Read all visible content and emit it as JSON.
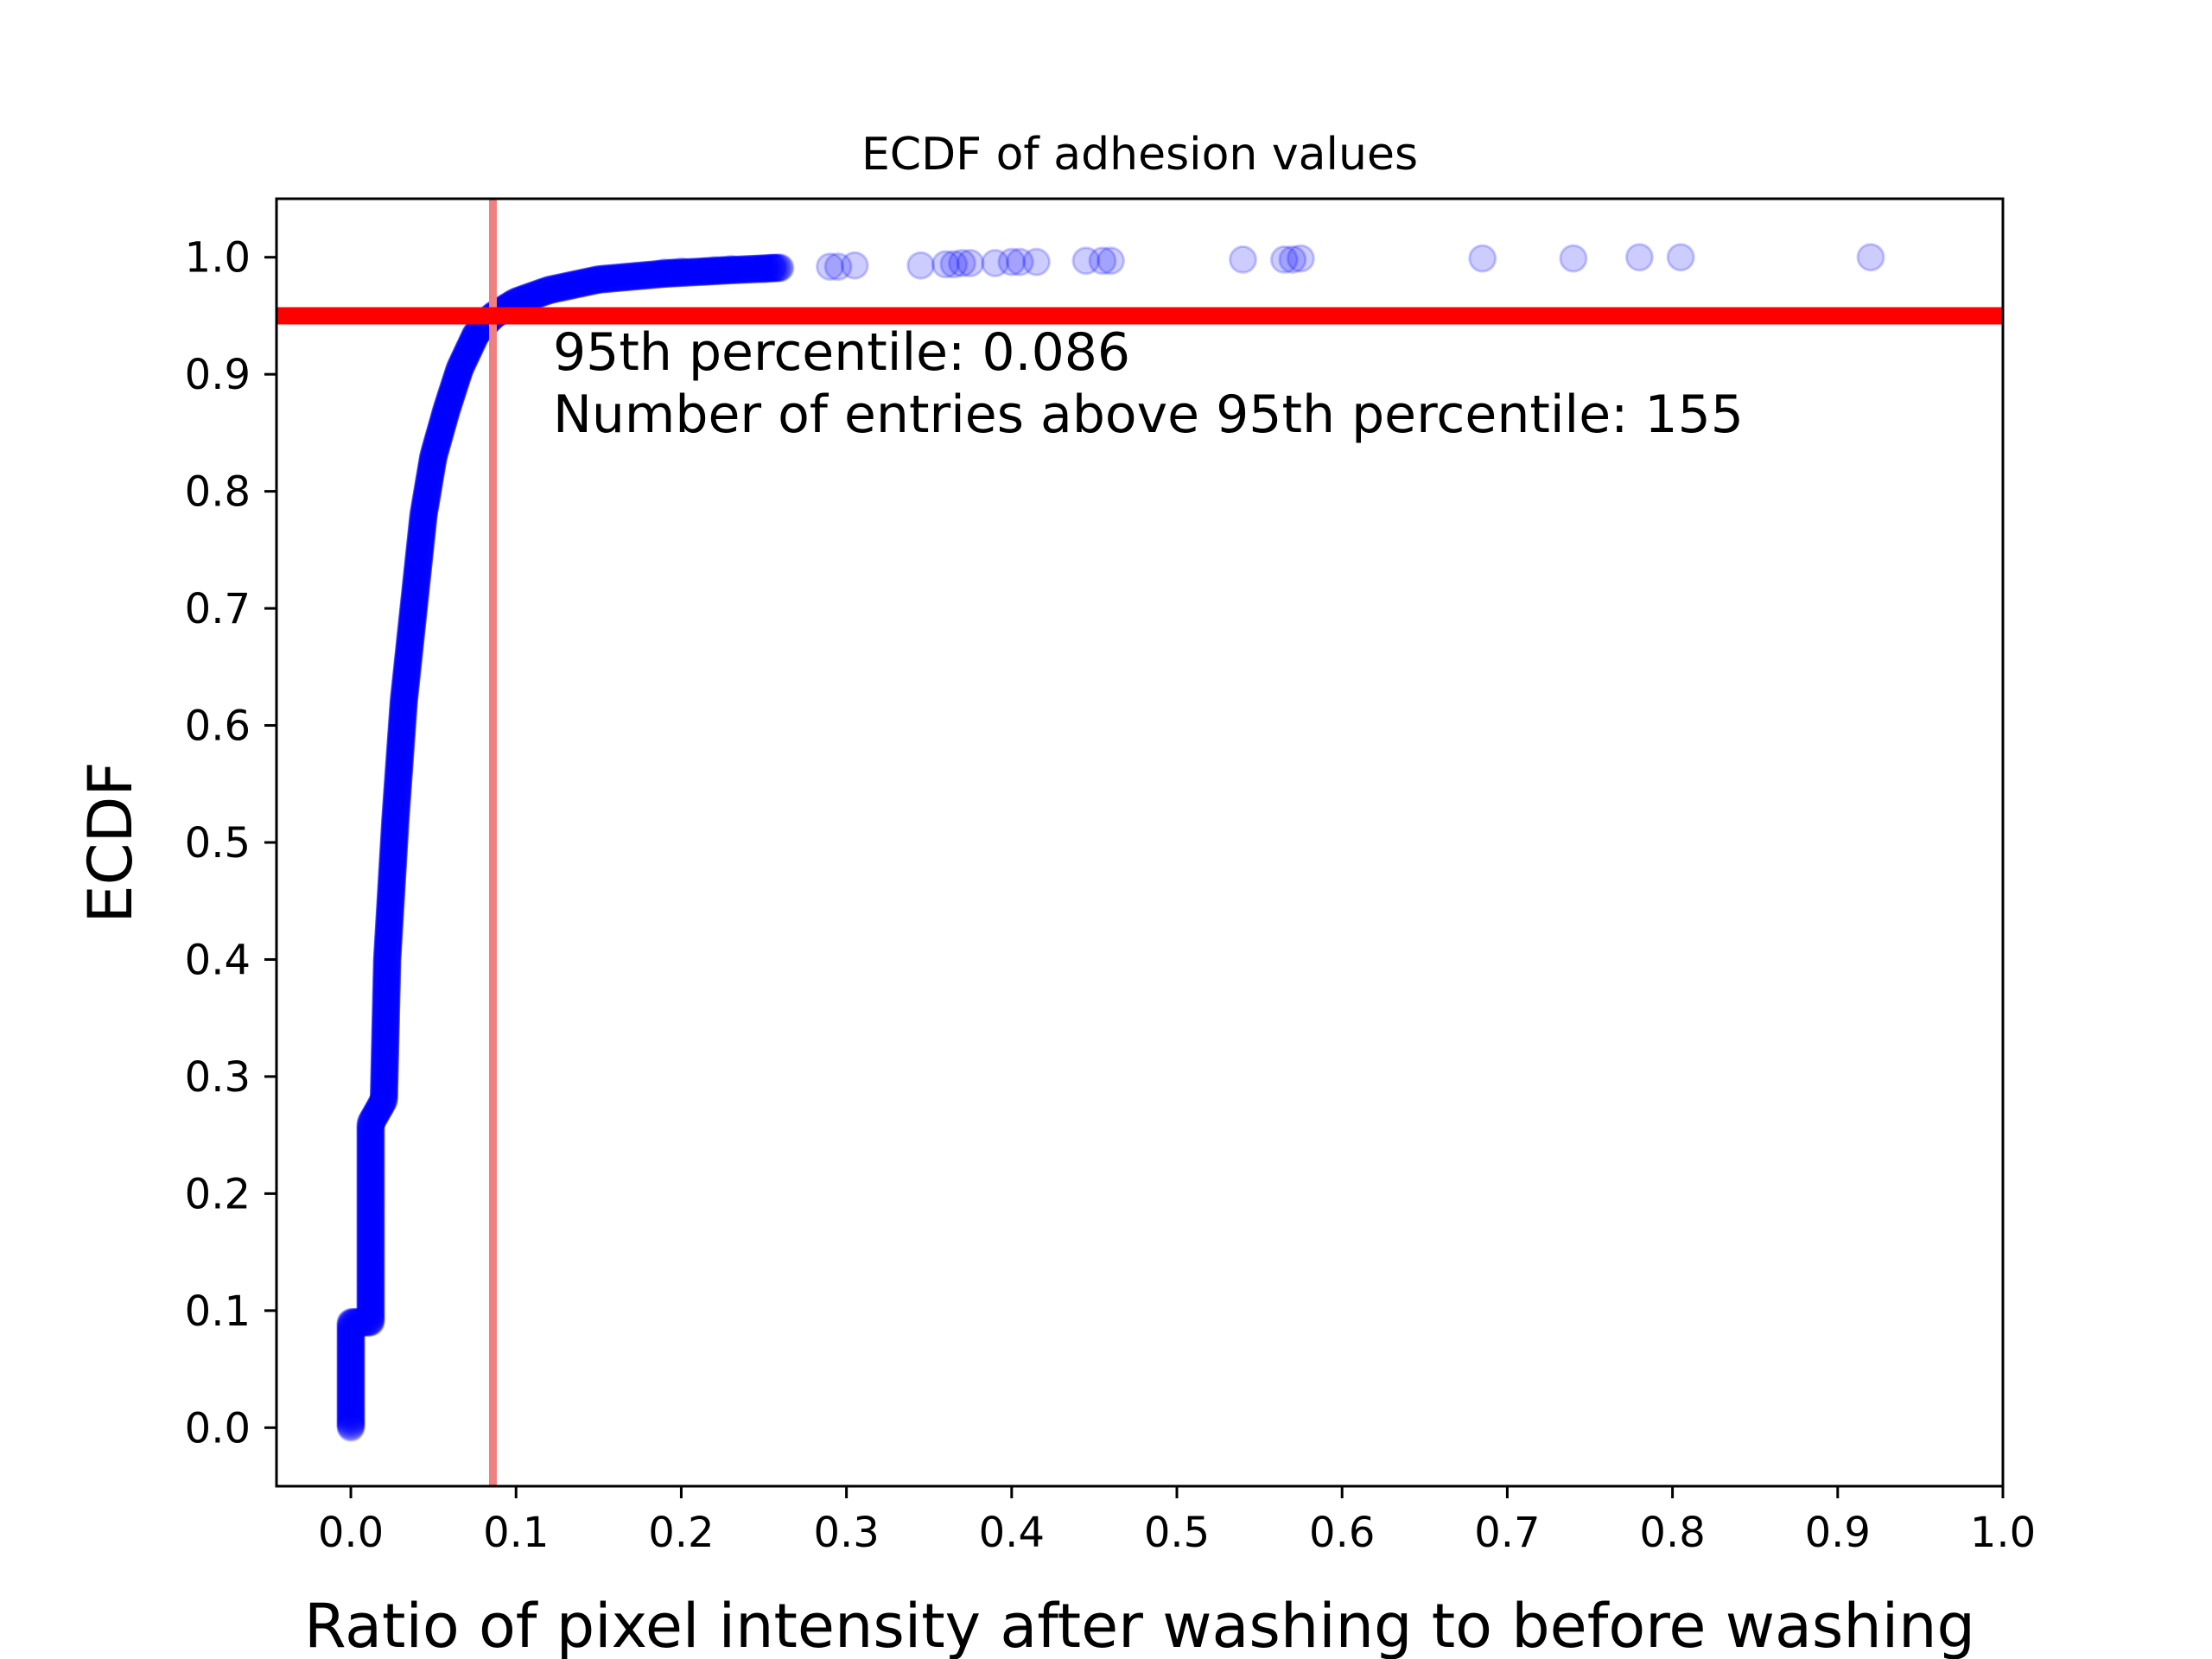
{
  "chart_data": {
    "type": "scatter",
    "title": "ECDF of adhesion values",
    "xlabel": "Ratio of pixel intensity after washing to before washing",
    "ylabel": "ECDF",
    "xlim": [
      -0.045,
      1.0
    ],
    "ylim": [
      -0.05,
      1.05
    ],
    "x_ticks": [
      "0.0",
      "0.1",
      "0.2",
      "0.3",
      "0.4",
      "0.5",
      "0.6",
      "0.7",
      "0.8",
      "0.9",
      "1.0"
    ],
    "y_ticks": [
      "0.0",
      "0.1",
      "0.2",
      "0.3",
      "0.4",
      "0.5",
      "0.6",
      "0.7",
      "0.8",
      "0.9",
      "1.0"
    ],
    "grid": false,
    "marker_color": "#0000ff",
    "marker_alpha": 0.2,
    "percentile_95": 0.086,
    "ecdf_at_percentile": 0.95,
    "entries_above_95th": 155,
    "hline_color": "#ff0000",
    "vline_color": "#f08080",
    "annotations": [
      "95th percentile: 0.086",
      "Number of entries above 95th percentile: 155"
    ],
    "ecdf_curve": [
      [
        0.0,
        0.0
      ],
      [
        0.0,
        0.09
      ],
      [
        0.012,
        0.09
      ],
      [
        0.012,
        0.26
      ],
      [
        0.02,
        0.28
      ],
      [
        0.022,
        0.4
      ],
      [
        0.027,
        0.52
      ],
      [
        0.032,
        0.62
      ],
      [
        0.038,
        0.7
      ],
      [
        0.044,
        0.78
      ],
      [
        0.05,
        0.83
      ],
      [
        0.058,
        0.87
      ],
      [
        0.066,
        0.905
      ],
      [
        0.076,
        0.935
      ],
      [
        0.086,
        0.95
      ],
      [
        0.1,
        0.962
      ],
      [
        0.12,
        0.972
      ],
      [
        0.15,
        0.981
      ],
      [
        0.19,
        0.986
      ],
      [
        0.23,
        0.989
      ],
      [
        0.26,
        0.991
      ]
    ],
    "tail_points_x": [
      0.19,
      0.195,
      0.2,
      0.215,
      0.22,
      0.225,
      0.23,
      0.25,
      0.255,
      0.26,
      0.29,
      0.295,
      0.305,
      0.345,
      0.36,
      0.365,
      0.37,
      0.375,
      0.39,
      0.4,
      0.405,
      0.415,
      0.445,
      0.455,
      0.46,
      0.54,
      0.565,
      0.57,
      0.575,
      0.685,
      0.74,
      0.78,
      0.805,
      0.92
    ],
    "tail_points_y": [
      0.987,
      0.987,
      0.988,
      0.988,
      0.989,
      0.989,
      0.99,
      0.99,
      0.991,
      0.991,
      0.992,
      0.992,
      0.993,
      0.993,
      0.994,
      0.994,
      0.995,
      0.995,
      0.995,
      0.996,
      0.996,
      0.996,
      0.997,
      0.997,
      0.997,
      0.998,
      0.998,
      0.998,
      0.999,
      0.999,
      0.999,
      1.0,
      1.0,
      1.0
    ]
  }
}
